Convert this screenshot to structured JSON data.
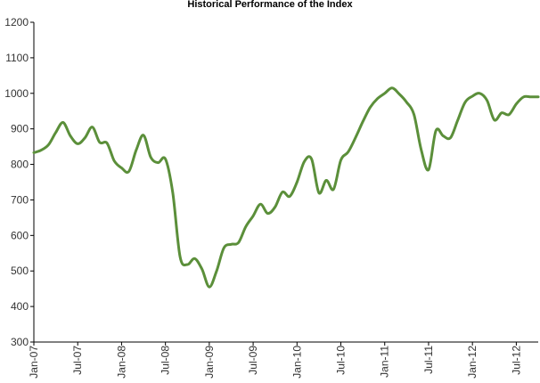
{
  "chart_data": {
    "type": "line",
    "title": "Historical Performance of the Index",
    "xlabel": "",
    "ylabel": "",
    "ylim": [
      300,
      1200
    ],
    "yticks": [
      300,
      400,
      500,
      600,
      700,
      800,
      900,
      1000,
      1100,
      1200
    ],
    "xlim": [
      "2007-01",
      "2012-10"
    ],
    "xticks": [
      "Jan-07",
      "Jul-07",
      "Jan-08",
      "Jul-08",
      "Jan-09",
      "Jul-09",
      "Jan-10",
      "Jul-10",
      "Jan-11",
      "Jul-11",
      "Jan-12",
      "Jul-12"
    ],
    "grid": false,
    "legend": "none",
    "color": "#5b8f3a",
    "series": [
      {
        "x": [
          "2007-01",
          "2007-02",
          "2007-03",
          "2007-04",
          "2007-05",
          "2007-06",
          "2007-07",
          "2007-08",
          "2007-09",
          "2007-10",
          "2007-11",
          "2007-12",
          "2008-01",
          "2008-02",
          "2008-03",
          "2008-04",
          "2008-05",
          "2008-06",
          "2008-07",
          "2008-08",
          "2008-09",
          "2008-10",
          "2008-11",
          "2008-12",
          "2009-01",
          "2009-02",
          "2009-03",
          "2009-04",
          "2009-05",
          "2009-06",
          "2009-07",
          "2009-08",
          "2009-09",
          "2009-10",
          "2009-11",
          "2009-12",
          "2010-01",
          "2010-02",
          "2010-03",
          "2010-04",
          "2010-05",
          "2010-06",
          "2010-07",
          "2010-08",
          "2010-09",
          "2010-10",
          "2010-11",
          "2010-12",
          "2011-01",
          "2011-02",
          "2011-03",
          "2011-04",
          "2011-05",
          "2011-06",
          "2011-07",
          "2011-08",
          "2011-09",
          "2011-10",
          "2011-11",
          "2011-12",
          "2012-01",
          "2012-02",
          "2012-03",
          "2012-04",
          "2012-05",
          "2012-06",
          "2012-07",
          "2012-08",
          "2012-09",
          "2012-10"
        ],
        "values": [
          833,
          840,
          855,
          890,
          918,
          880,
          858,
          875,
          905,
          862,
          860,
          810,
          790,
          780,
          840,
          882,
          820,
          805,
          815,
          720,
          540,
          518,
          535,
          505,
          455,
          500,
          565,
          575,
          580,
          625,
          655,
          688,
          662,
          680,
          722,
          710,
          750,
          808,
          815,
          720,
          755,
          730,
          812,
          835,
          875,
          920,
          960,
          985,
          1000,
          1015,
          998,
          975,
          940,
          840,
          785,
          895,
          880,
          875,
          925,
          975,
          992,
          1000,
          980,
          925,
          945,
          940,
          970,
          990,
          990,
          990
        ]
      }
    ]
  }
}
